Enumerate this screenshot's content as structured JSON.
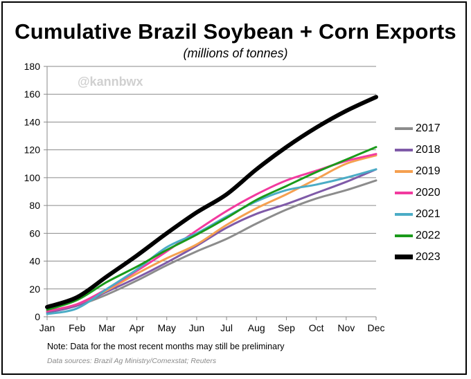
{
  "chart_data": {
    "type": "line",
    "title": "Cumulative Brazil Soybean + Corn Exports",
    "subtitle": "(millions  of tonnes)",
    "watermark": "@kannbwx",
    "note": "Note: Data for the most recent months may still be preliminary",
    "source": "Data sources: Brazil Ag Ministry/Comexstat; Reuters",
    "categories": [
      "Jan",
      "Feb",
      "Mar",
      "Apr",
      "May",
      "Jun",
      "Jul",
      "Aug",
      "Sep",
      "Oct",
      "Nov",
      "Dec"
    ],
    "ylim": [
      0,
      180
    ],
    "yticks": [
      0,
      20,
      40,
      60,
      80,
      100,
      120,
      140,
      160,
      180
    ],
    "grid": true,
    "legend_position": "right",
    "series": [
      {
        "name": "2017",
        "color": "#8c8c8c",
        "width": 3,
        "values": [
          4,
          8,
          16,
          26,
          37,
          47,
          56,
          67,
          77,
          85,
          91,
          98
        ]
      },
      {
        "name": "2018",
        "color": "#7f5aa8",
        "width": 3,
        "values": [
          3,
          8,
          18,
          28,
          39,
          51,
          64,
          74,
          81,
          89,
          97,
          106
        ]
      },
      {
        "name": "2019",
        "color": "#f5a050",
        "width": 3,
        "values": [
          4,
          9,
          19,
          31,
          42,
          52,
          66,
          78,
          88,
          99,
          110,
          116
        ]
      },
      {
        "name": "2020",
        "color": "#f23a9f",
        "width": 3,
        "values": [
          4,
          9,
          20,
          33,
          47,
          62,
          76,
          88,
          98,
          105,
          112,
          117
        ]
      },
      {
        "name": "2021",
        "color": "#4bacc6",
        "width": 3,
        "values": [
          2,
          6,
          20,
          34,
          50,
          60,
          72,
          83,
          91,
          95,
          100,
          106
        ]
      },
      {
        "name": "2022",
        "color": "#1a9a1a",
        "width": 3,
        "values": [
          5,
          12,
          25,
          36,
          48,
          59,
          71,
          84,
          94,
          104,
          113,
          122
        ]
      },
      {
        "name": "2023",
        "color": "#000000",
        "width": 6,
        "values": [
          7,
          14,
          29,
          44,
          60,
          75,
          88,
          106,
          122,
          136,
          148,
          158
        ]
      }
    ]
  }
}
